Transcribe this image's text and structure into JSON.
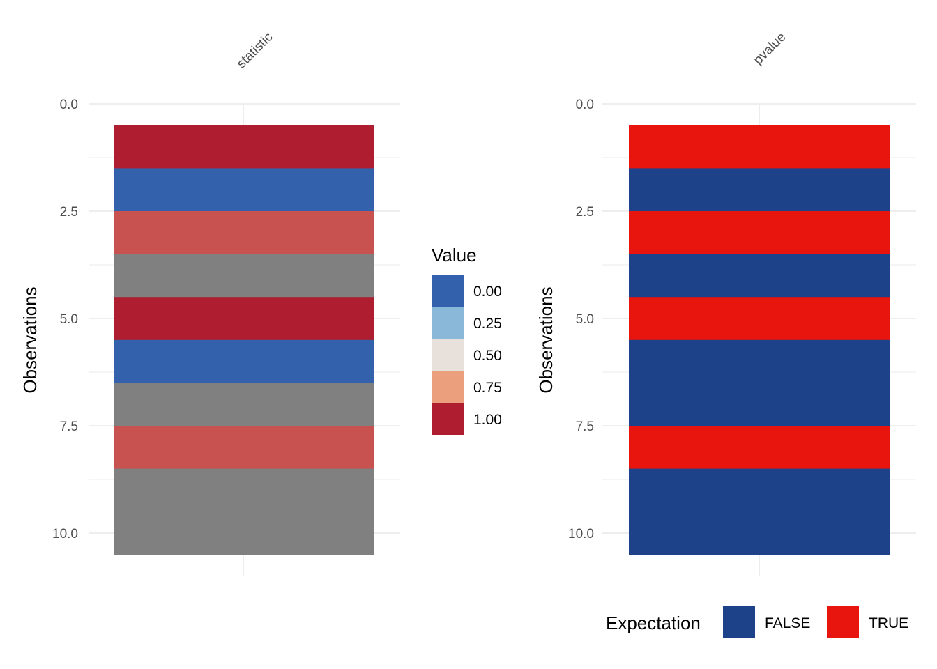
{
  "chart_data": [
    {
      "type": "heatmap",
      "column": "statistic",
      "ylabel": "Observations",
      "yticks": [
        "0.0",
        "2.5",
        "5.0",
        "7.5",
        "10.0"
      ],
      "ylim": [
        0,
        10.5
      ],
      "rows": [
        1,
        2,
        3,
        4,
        5,
        6,
        7,
        8,
        9,
        10
      ],
      "values": [
        1.0,
        0.0,
        0.9,
        null,
        1.0,
        0.0,
        null,
        0.9,
        null,
        null
      ],
      "na_color": "#808080",
      "legend": {
        "title": "Value",
        "position": "right",
        "items": [
          {
            "label": "0.00",
            "color": "#3461AB"
          },
          {
            "label": "0.25",
            "color": "#8AB8D8"
          },
          {
            "label": "0.50",
            "color": "#E7E0DB"
          },
          {
            "label": "0.75",
            "color": "#EC9F7D"
          },
          {
            "label": "1.00",
            "color": "#AE1E30"
          }
        ]
      }
    },
    {
      "type": "heatmap",
      "column": "pvalue",
      "ylabel": "Observations",
      "yticks": [
        "0.0",
        "2.5",
        "5.0",
        "7.5",
        "10.0"
      ],
      "ylim": [
        0,
        10.5
      ],
      "rows": [
        1,
        2,
        3,
        4,
        5,
        6,
        7,
        8,
        9,
        10
      ],
      "values": [
        "TRUE",
        "FALSE",
        "TRUE",
        "FALSE",
        "TRUE",
        "FALSE",
        "FALSE",
        "TRUE",
        "FALSE",
        "FALSE"
      ],
      "legend": {
        "title": "Expectation",
        "position": "bottom",
        "items": [
          {
            "label": "FALSE",
            "color": "#1E4289"
          },
          {
            "label": "TRUE",
            "color": "#E8150E"
          }
        ]
      }
    }
  ]
}
